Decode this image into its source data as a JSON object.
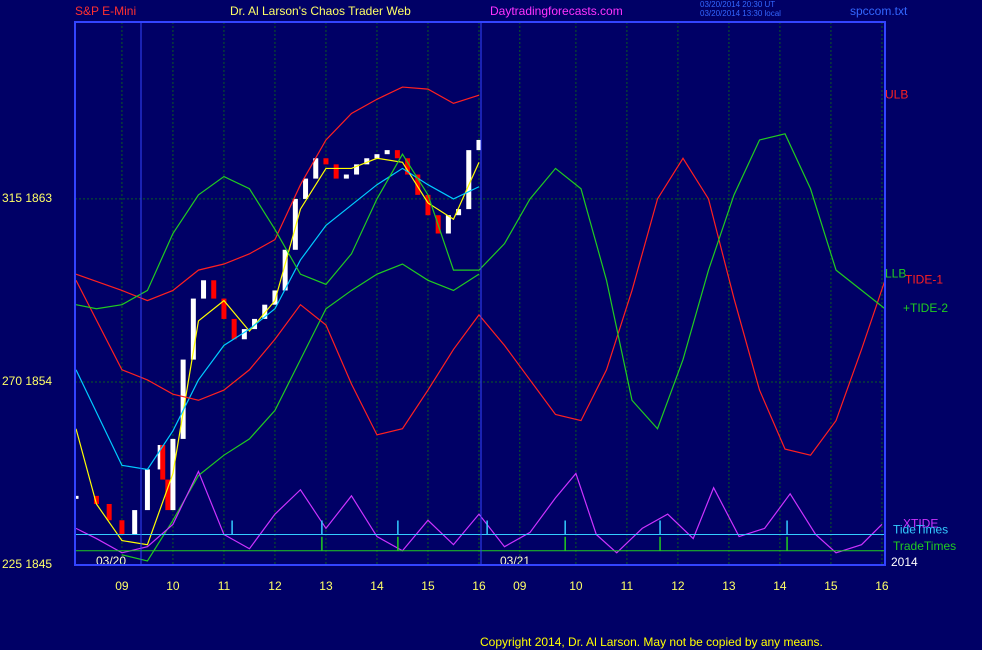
{
  "chart_data": {
    "type": "line",
    "title": "S&P E-Mini",
    "subtitle": "Dr. Al Larson's Chaos Trader Web",
    "site": "Daytradingforecasts.com",
    "timestamps": [
      "03/20/2014 20:30 UT",
      "03/20/2014 13:30 local"
    ],
    "file": "spccom.txt",
    "dates": [
      "03/20",
      "03/21"
    ],
    "year": "2014",
    "copyright": "Copyright 2014, Dr. Al Larson. May not be copied by any means.",
    "xlim": [
      -0.92,
      14.96
    ],
    "ylim": [
      1845,
      1871.7
    ],
    "xticks": [
      {
        "value": 0,
        "label": "09"
      },
      {
        "value": 1,
        "label": "10"
      },
      {
        "value": 2,
        "label": "11"
      },
      {
        "value": 3,
        "label": "12"
      },
      {
        "value": 4,
        "label": "13"
      },
      {
        "value": 5,
        "label": "14"
      },
      {
        "value": 6,
        "label": "15"
      },
      {
        "value": 7,
        "label": "16"
      },
      {
        "value": 7.8,
        "label": "09"
      },
      {
        "value": 8.9,
        "label": "10"
      },
      {
        "value": 9.9,
        "label": "11"
      },
      {
        "value": 10.9,
        "label": "12"
      },
      {
        "value": 11.9,
        "label": "13"
      },
      {
        "value": 12.9,
        "label": "14"
      },
      {
        "value": 13.9,
        "label": "15"
      },
      {
        "value": 14.9,
        "label": "16"
      }
    ],
    "yticks": [
      {
        "value": 1845,
        "label": "225  1845"
      },
      {
        "value": 1854,
        "label": "270  1854"
      },
      {
        "value": 1863,
        "label": "315  1863"
      }
    ],
    "grid": true,
    "series": [
      {
        "style": "bars",
        "color": "#ffffff",
        "down_color": "#ff0000",
        "x": [
          -0.9,
          -0.5,
          -0.25,
          0,
          0.25,
          0.5,
          0.75,
          0.8,
          0.9,
          1.0,
          1.2,
          1.4,
          1.6,
          1.8,
          2.0,
          2.2,
          2.4,
          2.6,
          2.8,
          3.0,
          3.2,
          3.4,
          3.6,
          3.8,
          4.0,
          4.2,
          4.4,
          4.6,
          4.8,
          5.0,
          5.2,
          5.4,
          5.6,
          5.8,
          6.0,
          6.2,
          6.4,
          6.6,
          6.8,
          7.0
        ],
        "values": [
          1848.4,
          1848.0,
          1847.2,
          1846.5,
          1847.7,
          1849.7,
          1850.9,
          1849.2,
          1847.7,
          1851.2,
          1855.1,
          1858.1,
          1859.0,
          1858.1,
          1857.1,
          1856.1,
          1856.6,
          1857.1,
          1857.8,
          1858.5,
          1860.5,
          1863.0,
          1864.0,
          1865.0,
          1864.7,
          1864.0,
          1864.2,
          1864.7,
          1865.0,
          1865.2,
          1865.4,
          1865.0,
          1864.2,
          1863.2,
          1862.2,
          1861.3,
          1862.2,
          1862.5,
          1865.4,
          1865.9
        ]
      },
      {
        "style": "line",
        "color": "#ffff00",
        "x": [
          -0.9,
          -0.5,
          0,
          0.5,
          1.0,
          1.5,
          2.0,
          2.5,
          3.0,
          3.5,
          4.0,
          4.5,
          5.0,
          5.5,
          6.0,
          6.5,
          7.0
        ],
        "values": [
          1851.7,
          1848.0,
          1846.2,
          1846.0,
          1849.5,
          1857.0,
          1858.0,
          1856.5,
          1858.0,
          1862.5,
          1864.5,
          1864.5,
          1865.0,
          1864.8,
          1862.8,
          1862.0,
          1864.8
        ]
      },
      {
        "style": "line",
        "color": "#00ccff",
        "x": [
          -0.9,
          0,
          0.5,
          1.0,
          1.5,
          2.0,
          2.5,
          3.0,
          3.5,
          4.0,
          4.5,
          5.0,
          5.5,
          6.0,
          6.5,
          7.0
        ],
        "values": [
          1854.6,
          1849.9,
          1849.7,
          1851.6,
          1854.1,
          1855.8,
          1856.6,
          1857.6,
          1860.0,
          1861.7,
          1862.7,
          1863.7,
          1864.5,
          1863.7,
          1863.0,
          1863.6
        ]
      },
      {
        "name": "ULB",
        "style": "line",
        "color": "#ff2020",
        "x": [
          -0.9,
          0,
          0.5,
          1.0,
          1.5,
          2.0,
          2.5,
          3.0,
          3.5,
          4.0,
          4.5,
          5.0,
          5.5,
          6.0,
          6.5,
          7.0
        ],
        "values": [
          1859.3,
          1858.5,
          1858.0,
          1858.5,
          1859.5,
          1859.8,
          1860.3,
          1861.0,
          1863.7,
          1865.9,
          1867.2,
          1867.9,
          1868.5,
          1868.4,
          1867.7,
          1868.1
        ]
      },
      {
        "name": "LLB",
        "style": "line",
        "color": "#20cc20",
        "x": [
          0,
          0.5,
          1.0,
          1.5,
          2.0,
          2.5,
          3.0,
          3.5,
          4.0,
          4.5,
          5.0,
          5.5,
          6.0,
          6.5,
          7.0
        ],
        "values": [
          1845.5,
          1845.2,
          1847.2,
          1849.4,
          1850.4,
          1851.2,
          1852.6,
          1855.1,
          1857.6,
          1858.5,
          1859.3,
          1859.8,
          1859.0,
          1858.5,
          1859.3
        ]
      },
      {
        "name": "TIDE-1",
        "style": "line",
        "color": "#ff2020",
        "x": [
          -0.9,
          0,
          0.5,
          1.0,
          1.5,
          2.0,
          2.5,
          3.0,
          3.5,
          4.0,
          4.5,
          5.0,
          5.5,
          6.0,
          6.5,
          7.0,
          7.5,
          8.0,
          8.5,
          9.0,
          9.5,
          10.0,
          10.5,
          11.0,
          11.5,
          12.0,
          12.5,
          13.0,
          13.5,
          14.0,
          14.5,
          14.96
        ],
        "values": [
          1859.0,
          1854.6,
          1854.1,
          1853.4,
          1853.1,
          1853.6,
          1854.6,
          1856.1,
          1857.8,
          1856.8,
          1853.9,
          1851.4,
          1851.7,
          1853.6,
          1855.6,
          1857.3,
          1855.8,
          1854.1,
          1852.4,
          1852.1,
          1854.6,
          1858.5,
          1863.0,
          1865.0,
          1863.0,
          1858.1,
          1853.6,
          1850.7,
          1850.4,
          1852.1,
          1855.6,
          1859.0
        ]
      },
      {
        "name": "+TIDE-2",
        "style": "line",
        "color": "#20cc20",
        "x": [
          -0.9,
          -0.5,
          0,
          0.5,
          1.0,
          1.5,
          2.0,
          2.5,
          3.0,
          3.5,
          4.0,
          4.5,
          5.0,
          5.5,
          6.0,
          6.5,
          7.0,
          7.5,
          8.0,
          8.5,
          9.0,
          9.5,
          10.0,
          10.5,
          11.0,
          11.5,
          12.0,
          12.5,
          13.0,
          13.5,
          14.0,
          14.96
        ],
        "values": [
          1857.8,
          1857.6,
          1857.8,
          1858.5,
          1861.3,
          1863.2,
          1864.1,
          1863.5,
          1861.5,
          1859.3,
          1858.8,
          1860.3,
          1863.0,
          1865.2,
          1863.2,
          1859.5,
          1859.5,
          1860.8,
          1863.0,
          1864.5,
          1863.5,
          1859.0,
          1853.1,
          1851.7,
          1855.1,
          1859.5,
          1863.2,
          1865.9,
          1866.2,
          1863.5,
          1859.5,
          1857.6
        ]
      },
      {
        "name": "XTIDE",
        "style": "line",
        "color": "#cc33ff",
        "x": [
          -0.9,
          -0.5,
          0,
          0.5,
          1.0,
          1.5,
          2.0,
          2.5,
          3.0,
          3.5,
          4.0,
          4.5,
          5.0,
          5.5,
          6.0,
          6.5,
          7.0,
          7.5,
          8.0,
          8.5,
          8.9,
          9.3,
          9.7,
          10.2,
          10.7,
          11.2,
          11.6,
          12.1,
          12.6,
          13.1,
          13.6,
          14.0,
          14.5,
          14.9
        ],
        "values": [
          1846.8,
          1846.3,
          1845.6,
          1845.9,
          1847.0,
          1849.6,
          1846.5,
          1845.8,
          1847.5,
          1848.7,
          1846.8,
          1848.4,
          1846.4,
          1845.7,
          1847.2,
          1846.0,
          1847.5,
          1845.9,
          1846.6,
          1848.3,
          1849.5,
          1846.5,
          1845.6,
          1846.8,
          1847.5,
          1846.3,
          1848.8,
          1846.4,
          1846.8,
          1848.5,
          1846.5,
          1845.6,
          1846.0,
          1847.0
        ]
      }
    ],
    "events": [
      {
        "name": "TideTimes",
        "color": "#33ccff",
        "value": 1846.5,
        "x": [
          2.16,
          3.92,
          5.41,
          7.16,
          8.69,
          10.55,
          13.04
        ]
      },
      {
        "name": "TradeTimes",
        "color": "#20cc20",
        "value": 1845.7,
        "x": [
          3.92,
          5.41,
          8.69,
          10.55,
          13.04
        ]
      }
    ]
  }
}
